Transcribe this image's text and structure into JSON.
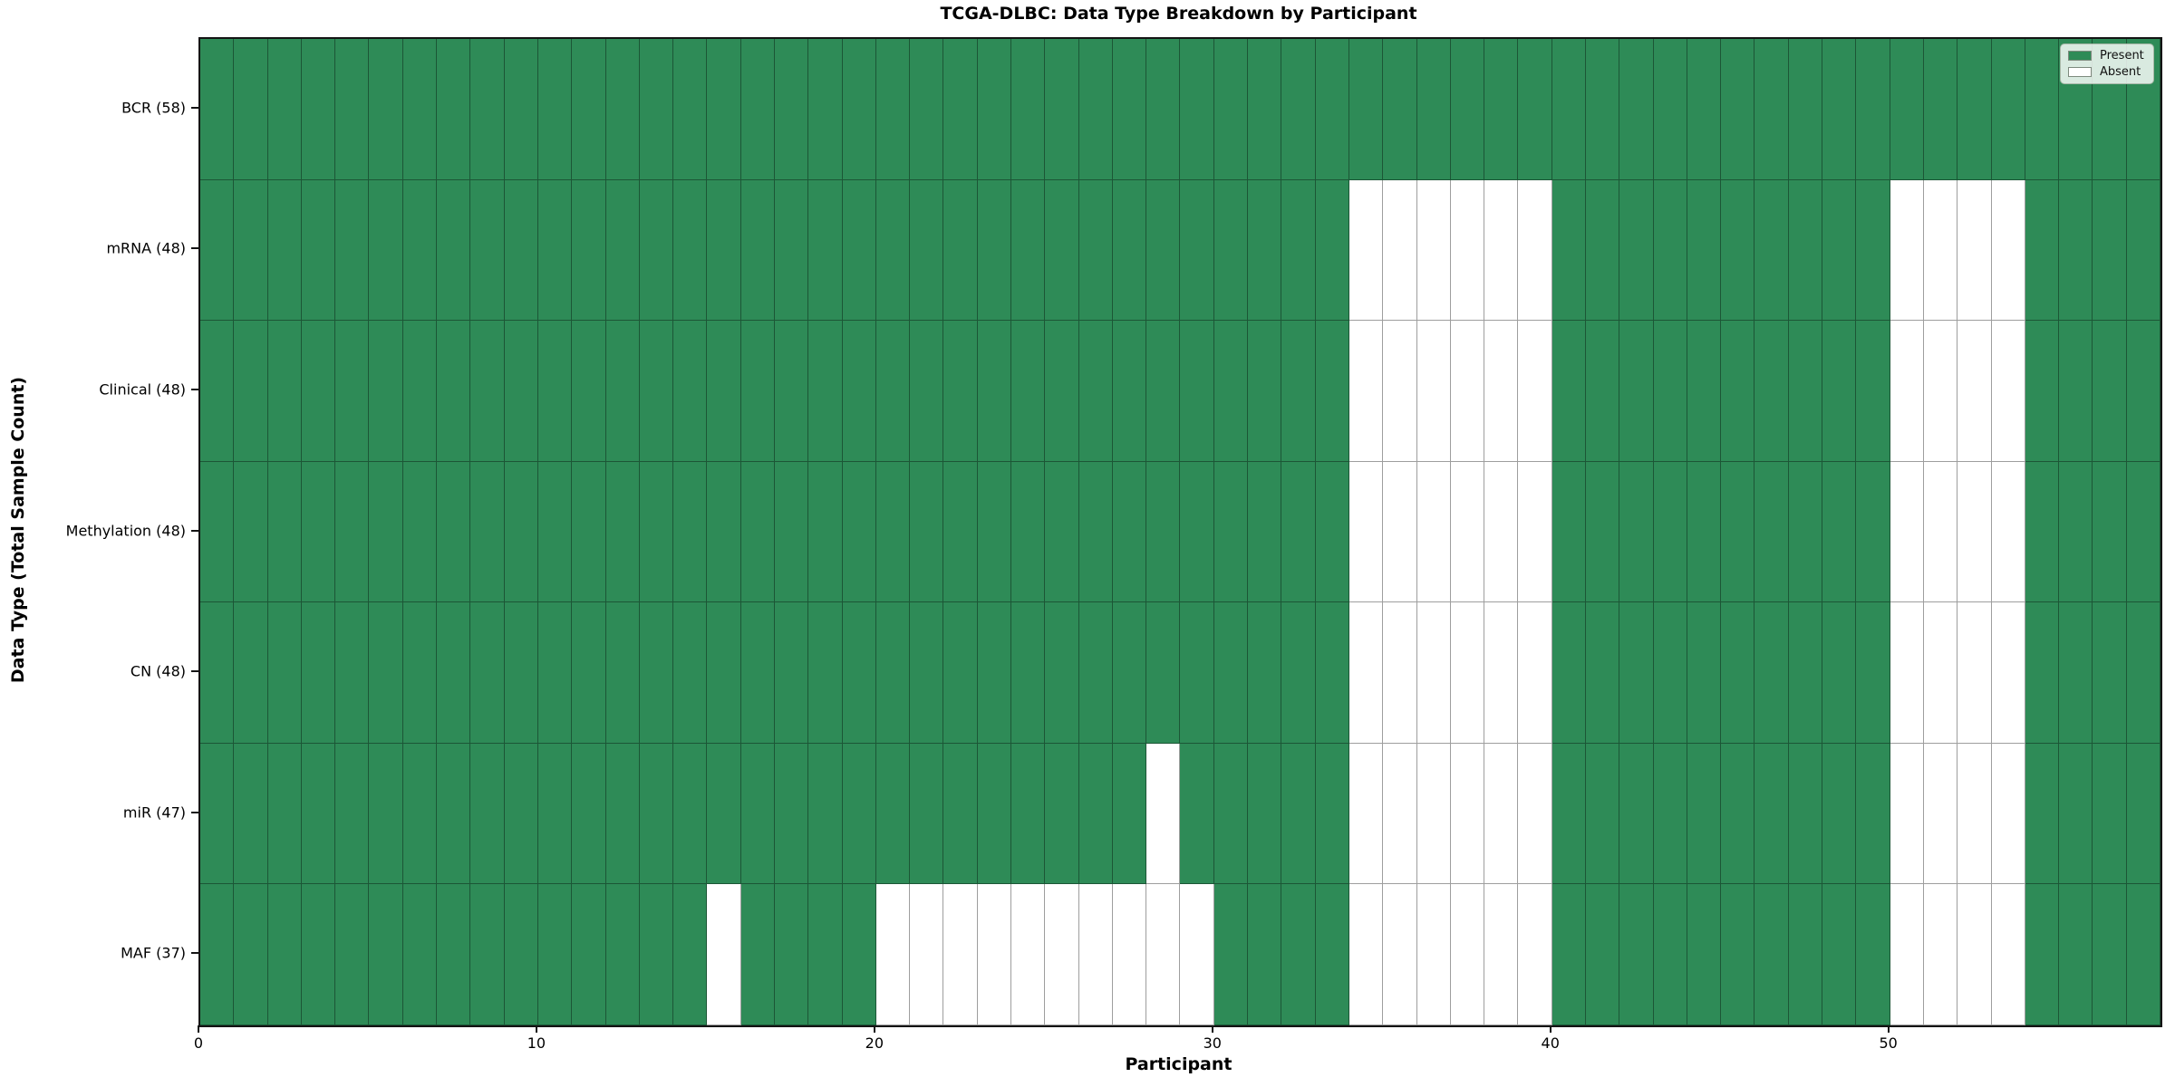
{
  "figure": {
    "title": "TCGA-DLBC: Data Type Breakdown by Participant",
    "xlabel": "Participant",
    "ylabel": "Data Type (Total Sample Count)"
  },
  "legend": {
    "present_label": "Present",
    "absent_label": "Absent"
  },
  "chart_data": {
    "type": "heatmap",
    "title": "TCGA-DLBC: Data Type Breakdown by Participant",
    "xlabel": "Participant",
    "ylabel": "Data Type (Total Sample Count)",
    "n_participants": 58,
    "x_range": [
      0,
      58
    ],
    "x_ticks": [
      0,
      10,
      20,
      30,
      40,
      50
    ],
    "grid": true,
    "legend_position": "upper right",
    "colors": {
      "present": "#2e8b57",
      "absent": "#ffffff",
      "cell_edge": "rgba(0,0,0,0.38)"
    },
    "legend_entries": [
      {
        "label": "Present",
        "color": "#2e8b57"
      },
      {
        "label": "Absent",
        "color": "#ffffff"
      }
    ],
    "rows": [
      {
        "label": "BCR (58)",
        "data_type": "BCR",
        "total_samples": 58,
        "absent_participants": []
      },
      {
        "label": "mRNA (48)",
        "data_type": "mRNA",
        "total_samples": 48,
        "absent_participants": [
          34,
          35,
          36,
          37,
          38,
          39,
          50,
          51,
          52,
          53
        ]
      },
      {
        "label": "Clinical (48)",
        "data_type": "Clinical",
        "total_samples": 48,
        "absent_participants": [
          34,
          35,
          36,
          37,
          38,
          39,
          50,
          51,
          52,
          53
        ]
      },
      {
        "label": "Methylation (48)",
        "data_type": "Methylation",
        "total_samples": 48,
        "absent_participants": [
          34,
          35,
          36,
          37,
          38,
          39,
          50,
          51,
          52,
          53
        ]
      },
      {
        "label": "CN (48)",
        "data_type": "CN",
        "total_samples": 48,
        "absent_participants": [
          34,
          35,
          36,
          37,
          38,
          39,
          50,
          51,
          52,
          53
        ]
      },
      {
        "label": "miR (47)",
        "data_type": "miR",
        "total_samples": 47,
        "absent_participants": [
          28,
          34,
          35,
          36,
          37,
          38,
          39,
          50,
          51,
          52,
          53
        ]
      },
      {
        "label": "MAF (37)",
        "data_type": "MAF",
        "total_samples": 37,
        "absent_participants": [
          15,
          20,
          21,
          22,
          23,
          24,
          25,
          26,
          27,
          28,
          29,
          34,
          35,
          36,
          37,
          38,
          39,
          50,
          51,
          52,
          53
        ]
      }
    ]
  }
}
